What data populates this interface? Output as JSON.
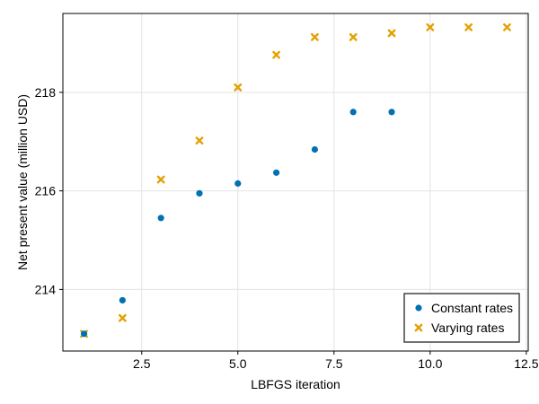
{
  "chart_data": {
    "type": "scatter",
    "xlabel": "LBFGS iteration",
    "ylabel": "Net present value (million USD)",
    "xlim": [
      0.45,
      12.55
    ],
    "ylim": [
      212.75,
      219.6
    ],
    "xticks": [
      2.5,
      5.0,
      7.5,
      10.0,
      12.5
    ],
    "xtick_labels": [
      "2.5",
      "5.0",
      "7.5",
      "10.0",
      "12.5"
    ],
    "yticks": [
      214,
      216,
      218
    ],
    "ytick_labels": [
      "214",
      "216",
      "218"
    ],
    "grid": true,
    "legend_position": "bottom-right",
    "series": [
      {
        "name": "Constant rates",
        "marker": "circle",
        "color": "#0072b2",
        "x": [
          1,
          2,
          3,
          4,
          5,
          6,
          7,
          8,
          9
        ],
        "y": [
          213.1,
          213.78,
          215.45,
          215.95,
          216.15,
          216.37,
          216.84,
          217.6,
          217.6
        ]
      },
      {
        "name": "Varying rates",
        "marker": "x",
        "color": "#e69f00",
        "x": [
          1,
          2,
          3,
          4,
          5,
          6,
          7,
          8,
          9,
          10,
          11,
          12
        ],
        "y": [
          213.1,
          213.42,
          216.23,
          217.02,
          218.1,
          218.76,
          219.12,
          219.12,
          219.2,
          219.32,
          219.32,
          219.32
        ]
      }
    ]
  }
}
